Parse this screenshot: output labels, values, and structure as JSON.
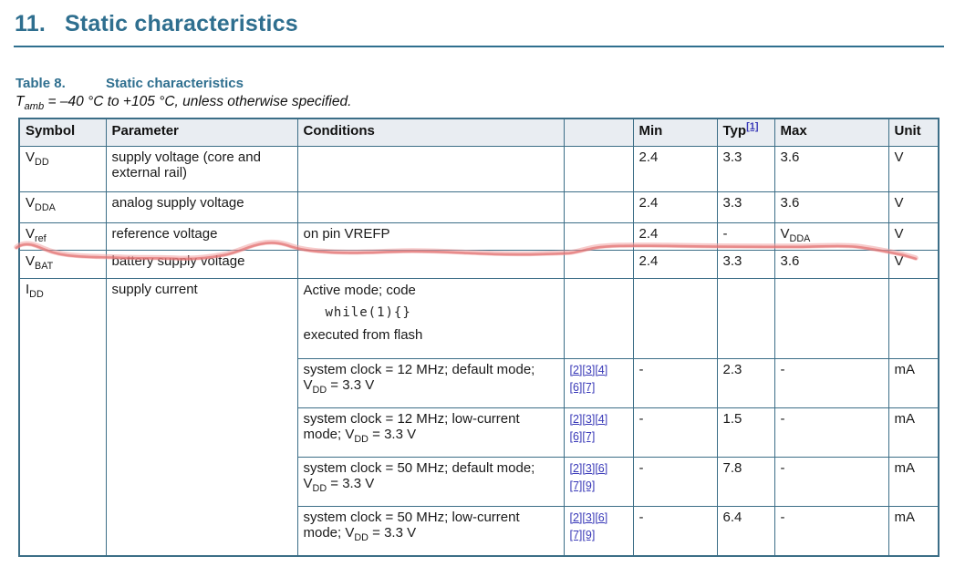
{
  "section": {
    "number": "11.",
    "title": "Static characteristics"
  },
  "caption": {
    "label": "Table 8.",
    "title": "Static characteristics"
  },
  "note": "T~amb~ = –40 °C to +105 °C, unless otherwise specified.",
  "table": {
    "headers": {
      "symbol": "Symbol",
      "parameter": "Parameter",
      "conditions": "Conditions",
      "refs": "",
      "min": "Min",
      "typ": "Typ",
      "typ_ref": "[1]",
      "max": "Max",
      "unit": "Unit"
    },
    "rows": [
      {
        "symbol": "V~DD~",
        "parameter": "supply voltage (core and external rail)",
        "conditions": "",
        "refs": "",
        "min": "2.4",
        "typ": "3.3",
        "max": "3.6",
        "unit": "V"
      },
      {
        "symbol": "V~DDA~",
        "parameter": "analog supply voltage",
        "conditions": "",
        "refs": "",
        "min": "2.4",
        "typ": "3.3",
        "max": "3.6",
        "unit": "V"
      },
      {
        "symbol": "V~ref~",
        "parameter": "reference voltage",
        "conditions": "on pin VREFP",
        "refs": "",
        "min": "2.4",
        "typ": "-",
        "max": "V~DDA~",
        "unit": "V"
      },
      {
        "symbol": "V~BAT~",
        "parameter": "battery supply voltage",
        "conditions": "",
        "refs": "",
        "min": "2.4",
        "typ": "3.3",
        "max": "3.6",
        "unit": "V"
      }
    ],
    "idd": {
      "symbol": "I~DD~",
      "parameter": "supply current",
      "intro": {
        "line1": "Active mode; code",
        "code": "while(1){}",
        "line3": "executed from flash"
      },
      "subrows": [
        {
          "conditions": "system clock = 12 MHz; default mode; V~DD~ = 3.3 V",
          "refs1": [
            "[2]",
            "[3]",
            "[4]"
          ],
          "refs2": [
            "[6]",
            "[7]"
          ],
          "min": "-",
          "typ": "2.3",
          "max": "-",
          "unit": "mA"
        },
        {
          "conditions": "system clock = 12 MHz; low-current mode; V~DD~ = 3.3 V",
          "refs1": [
            "[2]",
            "[3]",
            "[4]"
          ],
          "refs2": [
            "[6]",
            "[7]"
          ],
          "min": "-",
          "typ": "1.5",
          "max": "-",
          "unit": "mA"
        },
        {
          "conditions": "system clock = 50 MHz; default mode; V~DD~ = 3.3 V",
          "refs1": [
            "[2]",
            "[3]",
            "[6]"
          ],
          "refs2": [
            "[7]",
            "[9]"
          ],
          "min": "-",
          "typ": "7.8",
          "max": "-",
          "unit": "mA"
        },
        {
          "conditions": "system clock = 50 MHz; low-current mode; V~DD~ = 3.3 V",
          "refs1": [
            "[2]",
            "[3]",
            "[6]"
          ],
          "refs2": [
            "[7]",
            "[9]"
          ],
          "min": "-",
          "typ": "6.4",
          "max": "-",
          "unit": "mA"
        }
      ]
    }
  },
  "annotation": {
    "kind": "hand-drawn red marker line across Vref/VBAT rows",
    "color_main": "#e06868",
    "color_halo": "#f0a1a1"
  },
  "colors": {
    "heading_teal": "#2f6f8f",
    "table_border": "#3c6e87",
    "header_bg": "#e9edf2",
    "link_blue": "#3a3ab8"
  }
}
